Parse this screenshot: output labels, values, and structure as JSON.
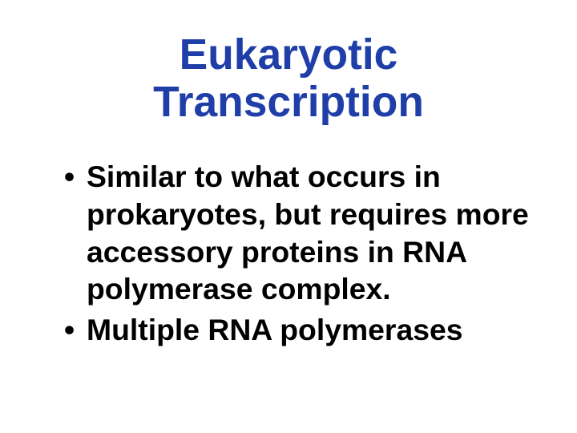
{
  "slide": {
    "background_color": "#ffffff",
    "title": {
      "text": "Eukaryotic Transcription",
      "color": "#1f3ea8",
      "font_size_pt": 40,
      "font_weight": "bold",
      "font_family": "Comic Sans MS"
    },
    "body": {
      "color": "#000000",
      "font_size_pt": 28,
      "font_weight": "bold",
      "font_family": "Comic Sans MS",
      "bullets": [
        "Similar to what occurs in prokaryotes, but requires more accessory proteins in RNA polymerase complex.",
        "Multiple RNA polymerases"
      ]
    }
  }
}
